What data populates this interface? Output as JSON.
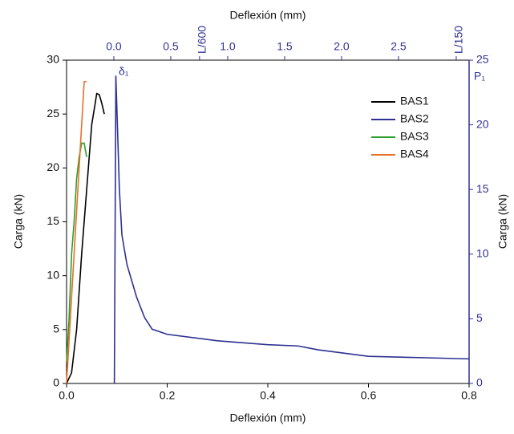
{
  "chart_data": {
    "type": "line",
    "xlabel": "Deflexión (mm)",
    "ylabel": "Carga (kN)",
    "y2label": "Carga (kN)",
    "x2label": "Deflexión (mm)",
    "xlim": [
      0,
      0.8
    ],
    "xticks": [
      {
        "value": 0,
        "label": "0.0"
      },
      0.2,
      0.4,
      0.6,
      0.8
    ],
    "ylim": [
      0,
      30
    ],
    "yticks": [
      0,
      5,
      10,
      15,
      20,
      25,
      30
    ],
    "y2lim": [
      0,
      25
    ],
    "y2ticks": [
      0,
      5,
      10,
      15,
      20,
      25
    ],
    "x2lim": [
      -0.415,
      3.12
    ],
    "x2ticks": [
      {
        "value": 0,
        "label": "0.0"
      },
      0.5,
      {
        "value": 0.753,
        "label": "L/600"
      },
      {
        "value": 1,
        "label": "1.0"
      },
      1.5,
      {
        "value": 2,
        "label": "2.0"
      },
      2.5,
      {
        "value": 3.007,
        "label": "L/150"
      }
    ],
    "annotations": [
      "δ₁",
      "P₁"
    ],
    "legend": "upper right",
    "series": [
      {
        "name": "BAS1",
        "color": "#000000",
        "x": [
          0,
          0.01,
          0.02,
          0.03,
          0.04,
          0.05,
          0.06,
          0.065,
          0.07,
          0.075
        ],
        "values": [
          0,
          1,
          5,
          12,
          18,
          24,
          26.9,
          26.8,
          26,
          25
        ]
      },
      {
        "name": "BAS2",
        "color": "#2e3192",
        "axis": "y2",
        "x": [
          0.095,
          0.098,
          0.105,
          0.11,
          0.12,
          0.139,
          0.155,
          0.17,
          0.2,
          0.3,
          0.4,
          0.46,
          0.5,
          0.6,
          0.7,
          0.8
        ],
        "values": [
          0,
          23.8,
          15,
          11.5,
          9.2,
          6.7,
          5.1,
          4.2,
          3.8,
          3.3,
          3.0,
          2.9,
          2.6,
          2.1,
          2.0,
          1.9
        ]
      },
      {
        "name": "BAS3",
        "color": "#2ca02c",
        "x": [
          0,
          0.005,
          0.01,
          0.015,
          0.02,
          0.025,
          0.03,
          0.035,
          0.04
        ],
        "values": [
          2,
          6,
          12,
          15,
          19,
          21,
          22.3,
          22.3,
          21
        ]
      },
      {
        "name": "BAS4",
        "color": "#e8702a",
        "x": [
          0,
          0.01,
          0.02,
          0.03,
          0.035,
          0.04
        ],
        "values": [
          0,
          8,
          16,
          24,
          28,
          28
        ]
      }
    ]
  }
}
